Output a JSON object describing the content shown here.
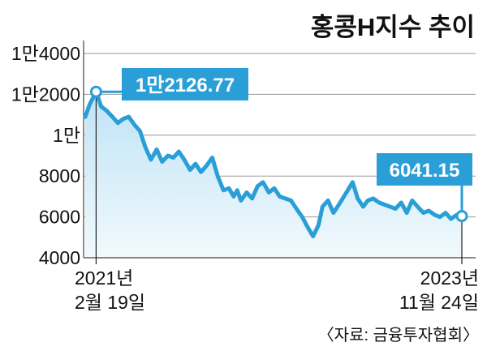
{
  "chart_data": {
    "type": "area",
    "title": "홍콩H지수 추이",
    "source": "〈자료: 금융투자협회〉",
    "ylim": [
      4000,
      14000
    ],
    "y_ticks": [
      {
        "value": 14000,
        "label": "1만4000"
      },
      {
        "value": 12000,
        "label": "1만2000"
      },
      {
        "value": 10000,
        "label": "1만"
      },
      {
        "value": 8000,
        "label": "8000"
      },
      {
        "value": 6000,
        "label": "6000"
      },
      {
        "value": 4000,
        "label": "4000"
      }
    ],
    "x_start_label": [
      "2021년",
      "2월 19일"
    ],
    "x_end_label": [
      "2023년",
      "11월 24일"
    ],
    "x_range": [
      "2021-02-19",
      "2023-11-24"
    ],
    "start_point": {
      "date": "2021-02-19",
      "value": 12126.77,
      "label": "1만2126.77"
    },
    "end_point": {
      "date": "2023-11-24",
      "value": 6041.15,
      "label": "6041.15"
    },
    "series": [
      {
        "x": [
          "2021-01-20",
          "2021-02-01",
          "2021-02-19",
          "2021-03-05",
          "2021-03-20",
          "2021-04-05",
          "2021-04-20",
          "2021-05-05",
          "2021-05-20",
          "2021-06-05",
          "2021-06-20",
          "2021-07-05",
          "2021-07-20",
          "2021-08-05",
          "2021-08-20",
          "2021-09-05",
          "2021-09-20",
          "2021-10-05",
          "2021-10-20",
          "2021-11-05",
          "2021-11-20",
          "2021-12-05",
          "2021-12-20",
          "2022-01-05",
          "2022-01-20",
          "2022-02-05",
          "2022-02-20",
          "2022-03-05",
          "2022-03-15",
          "2022-03-25",
          "2022-04-10",
          "2022-04-25",
          "2022-05-10",
          "2022-05-25",
          "2022-06-10",
          "2022-06-25",
          "2022-07-10",
          "2022-07-25",
          "2022-08-10",
          "2022-08-25",
          "2022-09-10",
          "2022-09-25",
          "2022-10-10",
          "2022-10-25",
          "2022-11-05",
          "2022-11-20",
          "2022-12-05",
          "2022-12-20",
          "2023-01-10",
          "2023-01-27",
          "2023-02-10",
          "2023-02-25",
          "2023-03-10",
          "2023-03-25",
          "2023-04-10",
          "2023-04-25",
          "2023-05-10",
          "2023-05-25",
          "2023-06-10",
          "2023-06-25",
          "2023-07-10",
          "2023-07-25",
          "2023-08-10",
          "2023-08-25",
          "2023-09-10",
          "2023-09-25",
          "2023-10-10",
          "2023-10-25",
          "2023-11-10",
          "2023-11-24"
        ],
        "values": [
          10900,
          11500,
          12127,
          11400,
          11200,
          10900,
          10600,
          10800,
          10900,
          10500,
          10200,
          9400,
          8800,
          9300,
          8700,
          9000,
          8900,
          9200,
          8800,
          8300,
          8600,
          8200,
          8500,
          8900,
          8000,
          7300,
          7400,
          7000,
          7300,
          6800,
          7200,
          6900,
          7500,
          7700,
          7200,
          7400,
          7000,
          6900,
          6800,
          6400,
          6000,
          5500,
          5050,
          5600,
          6500,
          6800,
          6200,
          6600,
          7200,
          7700,
          6900,
          6500,
          6800,
          6900,
          6700,
          6600,
          6500,
          6400,
          6700,
          6200,
          6800,
          6500,
          6200,
          6300,
          6100,
          6000,
          6200,
          5900,
          6100,
          6041
        ]
      }
    ]
  }
}
